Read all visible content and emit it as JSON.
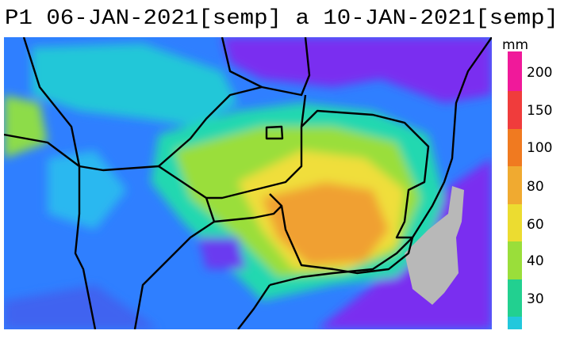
{
  "title": "P1 06-JAN-2021[semp] a 10-JAN-2021[semp]",
  "colorbar": {
    "unit": "mm",
    "labels": [
      "200",
      "150",
      "100",
      "80",
      "60",
      "40",
      "30"
    ]
  }
}
